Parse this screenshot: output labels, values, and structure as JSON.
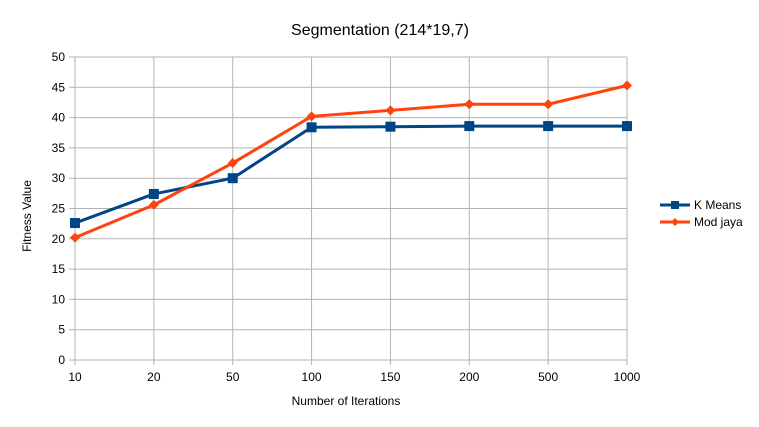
{
  "chart_data": {
    "type": "line",
    "title": "Segmentation (214*19,7)",
    "xlabel": "Number of Iterations",
    "ylabel": "Fitness Value",
    "categories": [
      "10",
      "20",
      "50",
      "100",
      "150",
      "200",
      "500",
      "1000"
    ],
    "ylim": [
      0,
      50
    ],
    "yticks": [
      0,
      5,
      10,
      15,
      20,
      25,
      30,
      35,
      40,
      45,
      50
    ],
    "grid": true,
    "legend_position": "right",
    "series": [
      {
        "name": "K Means",
        "color": "#004586",
        "marker": "square",
        "values": [
          22.6,
          27.4,
          30.0,
          38.4,
          38.5,
          38.6,
          38.6,
          38.6
        ]
      },
      {
        "name": "Mod jaya",
        "color": "#ff420e",
        "marker": "diamond",
        "values": [
          20.2,
          25.6,
          32.5,
          40.2,
          41.2,
          42.2,
          42.2,
          45.3
        ]
      }
    ]
  }
}
